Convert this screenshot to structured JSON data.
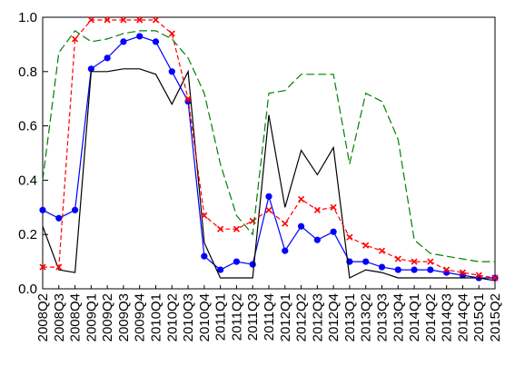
{
  "chart_data": {
    "type": "line",
    "title": "",
    "xlabel": "",
    "ylabel": "",
    "ylim": [
      0,
      1
    ],
    "grid": false,
    "legend": "none",
    "categories": [
      "2008Q2",
      "2008Q3",
      "2008Q4",
      "2009Q1",
      "2009Q2",
      "2009Q3",
      "2009Q4",
      "2010Q1",
      "2010Q2",
      "2010Q3",
      "2010Q4",
      "2011Q1",
      "2011Q2",
      "2011Q3",
      "2011Q4",
      "2012Q1",
      "2012Q2",
      "2012Q3",
      "2012Q4",
      "2013Q1",
      "2013Q2",
      "2013Q3",
      "2013Q4",
      "2014Q1",
      "2014Q2",
      "2014Q3",
      "2014Q4",
      "2015Q1",
      "2015Q2"
    ],
    "y_ticks": [
      "0.0",
      "0.2",
      "0.4",
      "0.6",
      "0.8",
      "1.0"
    ],
    "series": [
      {
        "color": "#0000ff",
        "style": "solid",
        "marker": "dot",
        "values": [
          0.29,
          0.26,
          0.29,
          0.81,
          0.85,
          0.91,
          0.93,
          0.91,
          0.8,
          0.69,
          0.12,
          0.07,
          0.1,
          0.09,
          0.34,
          0.14,
          0.23,
          0.18,
          0.21,
          0.1,
          0.1,
          0.08,
          0.07,
          0.07,
          0.07,
          0.06,
          0.05,
          0.04,
          0.04
        ]
      },
      {
        "color": "#000000",
        "style": "solid",
        "marker": "none",
        "values": [
          0.23,
          0.07,
          0.06,
          0.8,
          0.8,
          0.81,
          0.81,
          0.79,
          0.68,
          0.8,
          0.17,
          0.04,
          0.04,
          0.04,
          0.64,
          0.3,
          0.51,
          0.42,
          0.52,
          0.04,
          0.07,
          0.06,
          0.04,
          0.04,
          0.04,
          0.04,
          0.04,
          0.04,
          0.03
        ]
      },
      {
        "color": "#ff0000",
        "style": "dashed",
        "marker": "x",
        "values": [
          0.08,
          0.08,
          0.92,
          0.99,
          0.99,
          0.99,
          0.99,
          0.99,
          0.94,
          0.7,
          0.27,
          0.22,
          0.22,
          0.25,
          0.29,
          0.24,
          0.33,
          0.29,
          0.3,
          0.19,
          0.16,
          0.14,
          0.11,
          0.1,
          0.1,
          0.07,
          0.06,
          0.05,
          0.04
        ]
      },
      {
        "color": "#008000",
        "style": "longdash",
        "marker": "none",
        "values": [
          0.4,
          0.87,
          0.95,
          0.91,
          0.92,
          0.94,
          0.95,
          0.95,
          0.92,
          0.85,
          0.72,
          0.46,
          0.27,
          0.2,
          0.72,
          0.73,
          0.79,
          0.79,
          0.79,
          0.46,
          0.72,
          0.69,
          0.55,
          0.18,
          0.13,
          0.12,
          0.11,
          0.1,
          0.1
        ]
      }
    ]
  }
}
